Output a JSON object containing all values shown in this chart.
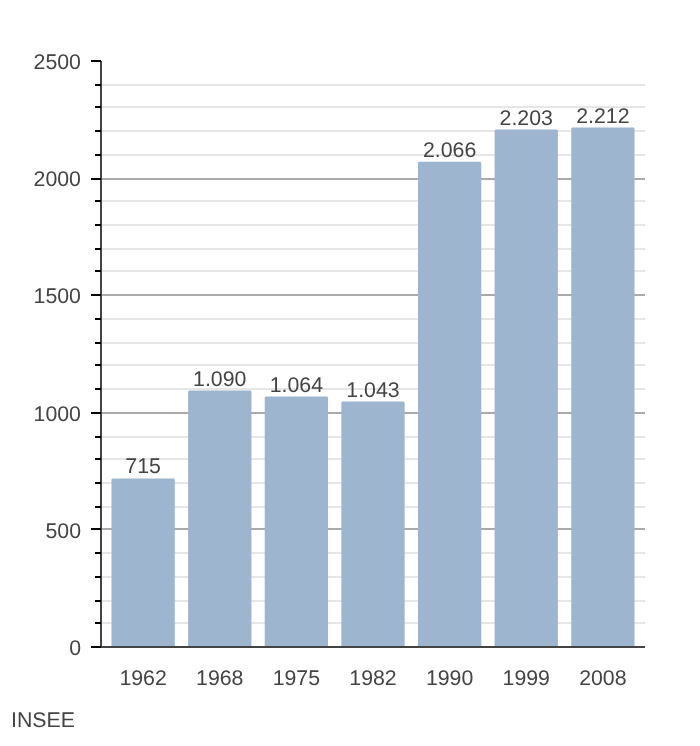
{
  "chart_data": {
    "type": "bar",
    "categories": [
      "1962",
      "1968",
      "1975",
      "1982",
      "1990",
      "1999",
      "2008"
    ],
    "values": [
      715,
      1090,
      1064,
      1043,
      2066,
      2203,
      2212
    ],
    "value_labels": [
      "715",
      "1.090",
      "1.064",
      "1.043",
      "2.066",
      "2.203",
      "2.212"
    ],
    "color": "#9db5cf",
    "ylim": [
      0,
      2500
    ],
    "yticks": [
      0,
      500,
      1000,
      1500,
      2000,
      2500
    ],
    "grid": "y",
    "annotations": [
      "INSEE"
    ]
  }
}
